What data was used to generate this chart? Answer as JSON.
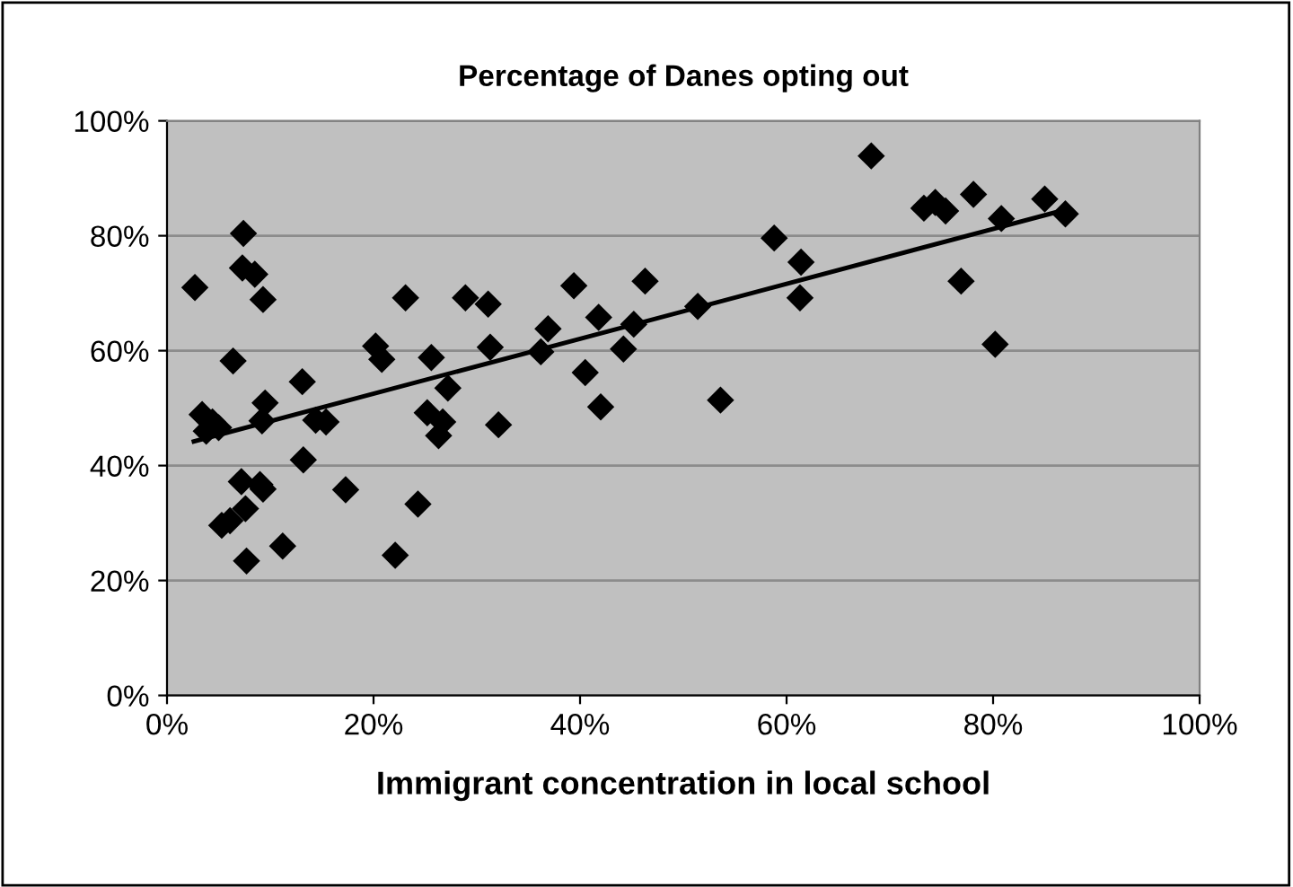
{
  "chart_data": {
    "type": "scatter",
    "title": "Percentage of Danes opting out",
    "xlabel": "Immigrant concentration in local school",
    "xlim": [
      0,
      100
    ],
    "ylim": [
      0,
      100
    ],
    "xticks": [
      {
        "value": 0,
        "label": "0%"
      },
      {
        "value": 20,
        "label": "20%"
      },
      {
        "value": 40,
        "label": "40%"
      },
      {
        "value": 60,
        "label": "60%"
      },
      {
        "value": 80,
        "label": "80%"
      },
      {
        "value": 100,
        "label": "100%"
      }
    ],
    "yticks": [
      {
        "value": 0,
        "label": "0%"
      },
      {
        "value": 20,
        "label": "20%"
      },
      {
        "value": 40,
        "label": "40%"
      },
      {
        "value": 60,
        "label": "60%"
      },
      {
        "value": 80,
        "label": "80%"
      },
      {
        "value": 100,
        "label": "100%"
      }
    ],
    "grid": "y",
    "marker": "diamond",
    "series": [
      {
        "color": "#000000",
        "x": [
          2.7,
          7.4,
          7.3,
          8.5,
          9.3,
          6.4,
          3.4,
          4.4,
          3.8,
          5.0,
          9.5,
          9.2,
          13.1,
          13.2,
          14.4,
          15.4,
          7.2,
          9.0,
          9.3,
          7.6,
          5.3,
          6.1,
          7.7,
          11.2,
          17.3,
          22.1,
          24.3,
          23.1,
          20.2,
          20.8,
          25.6,
          27.2,
          25.2,
          26.7,
          26.3,
          28.9,
          31.1,
          31.3,
          32.1,
          39.4,
          36.9,
          36.2,
          41.8,
          40.5,
          42.0,
          46.3,
          45.2,
          44.2,
          51.4,
          53.6,
          58.8,
          61.4,
          61.3,
          68.2,
          73.3,
          74.4,
          75.4,
          78.1,
          80.8,
          85.0,
          87.0,
          76.9,
          80.2
        ],
        "values": [
          71.0,
          80.4,
          74.4,
          73.3,
          68.9,
          58.2,
          48.9,
          47.6,
          46.0,
          46.6,
          50.9,
          47.8,
          54.6,
          41.0,
          47.9,
          47.6,
          37.2,
          36.7,
          35.9,
          32.5,
          29.6,
          30.4,
          23.4,
          26.0,
          35.8,
          24.4,
          33.3,
          69.2,
          60.8,
          58.5,
          58.8,
          53.5,
          49.2,
          47.6,
          45.2,
          69.2,
          68.1,
          60.6,
          47.1,
          71.3,
          63.8,
          59.8,
          65.8,
          56.2,
          50.2,
          72.1,
          64.6,
          60.3,
          67.7,
          51.4,
          79.6,
          75.4,
          69.2,
          93.9,
          84.8,
          85.8,
          84.3,
          87.2,
          83.0,
          86.4,
          83.8,
          72.1,
          61.1
        ]
      },
      {
        "type": "line",
        "color": "#000000",
        "marker": "none",
        "line_style": "solid",
        "x": [
          2.6,
          86.1
        ],
        "values": [
          44.2,
          84.1
        ]
      }
    ]
  }
}
